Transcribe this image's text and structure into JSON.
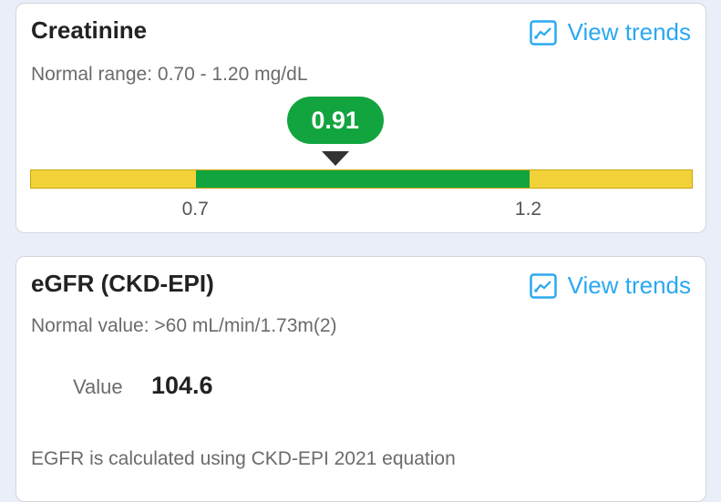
{
  "creatinine": {
    "title": "Creatinine",
    "view_trends": "View trends",
    "normal_range": "Normal range: 0.70 - 1.20 mg/dL",
    "value": 0.91,
    "value_label": "0.91",
    "low": 0.7,
    "high": 1.2,
    "low_label": "0.7",
    "high_label": "1.2",
    "scale_min": 0.452,
    "scale_max": 1.447,
    "colors": {
      "normal": "#12a43f",
      "out_of_range": "#f2d238",
      "link": "#2aa8f2"
    }
  },
  "egfr": {
    "title": "eGFR (CKD-EPI)",
    "view_trends": "View trends",
    "normal_value": "Normal value: >60 mL/min/1.73m(2)",
    "value_label": "Value",
    "value": "104.6",
    "note": "EGFR is calculated using CKD-EPI 2021 equation"
  }
}
